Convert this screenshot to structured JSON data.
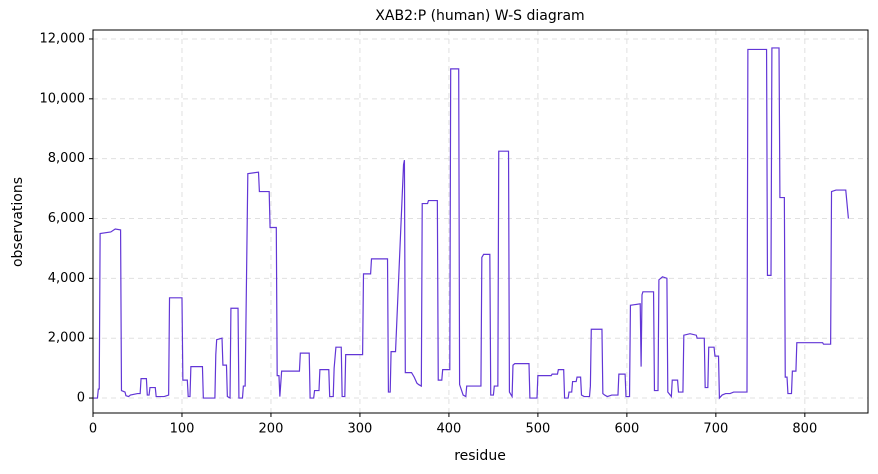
{
  "chart_data": {
    "type": "line",
    "title": "XAB2:P (human) W-S diagram",
    "xlabel": "residue",
    "ylabel": "observations",
    "x": [
      0,
      5,
      6,
      7,
      8,
      20,
      25,
      31,
      32,
      36,
      37,
      40,
      42,
      50,
      53,
      54,
      60,
      61,
      63,
      64,
      70,
      71,
      80,
      85,
      86,
      100,
      101,
      106,
      107,
      109,
      110,
      123,
      124,
      137,
      138,
      139,
      145,
      146,
      150,
      151,
      154,
      155,
      163,
      164,
      168,
      169,
      171,
      174,
      186,
      187,
      198,
      199,
      206,
      207,
      209,
      210,
      212,
      232,
      233,
      243,
      244,
      248,
      249,
      254,
      255,
      265,
      266,
      270,
      271,
      273,
      279,
      280,
      283,
      284,
      303,
      304,
      312,
      313,
      331,
      332,
      334,
      335,
      340,
      349,
      350,
      351,
      358,
      361,
      364,
      366,
      369,
      370,
      376,
      377,
      387,
      388,
      392,
      393,
      401,
      402,
      411,
      412,
      416,
      419,
      420,
      436,
      437,
      439,
      446,
      447,
      450,
      451,
      455,
      456,
      467,
      468,
      471,
      472,
      474,
      490,
      491,
      499,
      500,
      515,
      516,
      522,
      523,
      529,
      530,
      534,
      535,
      538,
      539,
      543,
      544,
      548,
      549,
      552,
      558,
      559,
      560,
      572,
      573,
      575,
      578,
      583,
      590,
      591,
      598,
      599,
      603,
      604,
      615,
      616,
      617,
      618,
      623,
      630,
      631,
      635,
      636,
      640,
      645,
      646,
      650,
      651,
      657,
      658,
      663,
      664,
      671,
      678,
      679,
      687,
      688,
      691,
      692,
      698,
      699,
      703,
      704,
      707,
      711,
      716,
      720,
      735,
      736,
      757,
      758,
      762,
      763,
      771,
      772,
      777,
      778,
      780,
      781,
      785,
      786,
      790,
      791,
      820,
      821,
      829,
      830,
      835,
      846,
      849
    ],
    "series": [
      {
        "name": "XAB2:P (human)",
        "color": "#6236d6",
        "values": [
          0,
          0,
          300,
          300,
          5500,
          5550,
          5650,
          5620,
          250,
          200,
          80,
          50,
          100,
          150,
          150,
          650,
          650,
          100,
          100,
          350,
          350,
          50,
          50,
          100,
          3350,
          3350,
          600,
          600,
          50,
          50,
          1050,
          1050,
          0,
          0,
          1450,
          1950,
          2000,
          1100,
          1100,
          50,
          0,
          3000,
          3000,
          0,
          0,
          400,
          400,
          7500,
          7550,
          6900,
          6900,
          5700,
          5700,
          750,
          750,
          50,
          900,
          900,
          1500,
          1500,
          0,
          0,
          250,
          250,
          950,
          950,
          50,
          50,
          1000,
          1700,
          1700,
          50,
          50,
          1450,
          1450,
          4150,
          4150,
          4650,
          4650,
          200,
          200,
          1550,
          1550,
          7800,
          7950,
          850,
          850,
          700,
          500,
          450,
          400,
          6500,
          6500,
          6600,
          6600,
          600,
          600,
          950,
          950,
          11000,
          11000,
          450,
          100,
          50,
          400,
          400,
          4700,
          4800,
          4800,
          100,
          100,
          400,
          400,
          8250,
          8250,
          200,
          50,
          1100,
          1150,
          1150,
          0,
          0,
          750,
          750,
          800,
          800,
          950,
          950,
          0,
          0,
          200,
          200,
          550,
          550,
          700,
          700,
          100,
          50,
          50,
          400,
          2300,
          2300,
          150,
          100,
          50,
          100,
          100,
          800,
          800,
          50,
          50,
          3100,
          3150,
          1050,
          3450,
          3550,
          3550,
          3550,
          250,
          250,
          3950,
          4050,
          4000,
          200,
          50,
          600,
          600,
          200,
          200,
          2100,
          2150,
          2100,
          2000,
          2000,
          350,
          350,
          1700,
          1700,
          1400,
          1400,
          0,
          100,
          150,
          150,
          200,
          200,
          11650,
          11650,
          4100,
          4100,
          11700,
          11700,
          6700,
          6700,
          700,
          700,
          150,
          150,
          900,
          900,
          1850,
          1850,
          1800,
          1800,
          6900,
          6950,
          6950,
          6000
        ]
      }
    ],
    "xlim": [
      0,
      871
    ],
    "ylim": [
      -500,
      12300
    ],
    "xticks": [
      0,
      100,
      200,
      300,
      400,
      500,
      600,
      700,
      800
    ],
    "yticks": [
      0,
      {
        "value": 2000,
        "label": "2,000"
      },
      {
        "value": 4000,
        "label": "4,000"
      },
      {
        "value": 6000,
        "label": "6,000"
      },
      {
        "value": 8000,
        "label": "8,000"
      },
      {
        "value": 10000,
        "label": "10,000"
      },
      {
        "value": 12000,
        "label": "12,000"
      }
    ],
    "grid": true
  }
}
